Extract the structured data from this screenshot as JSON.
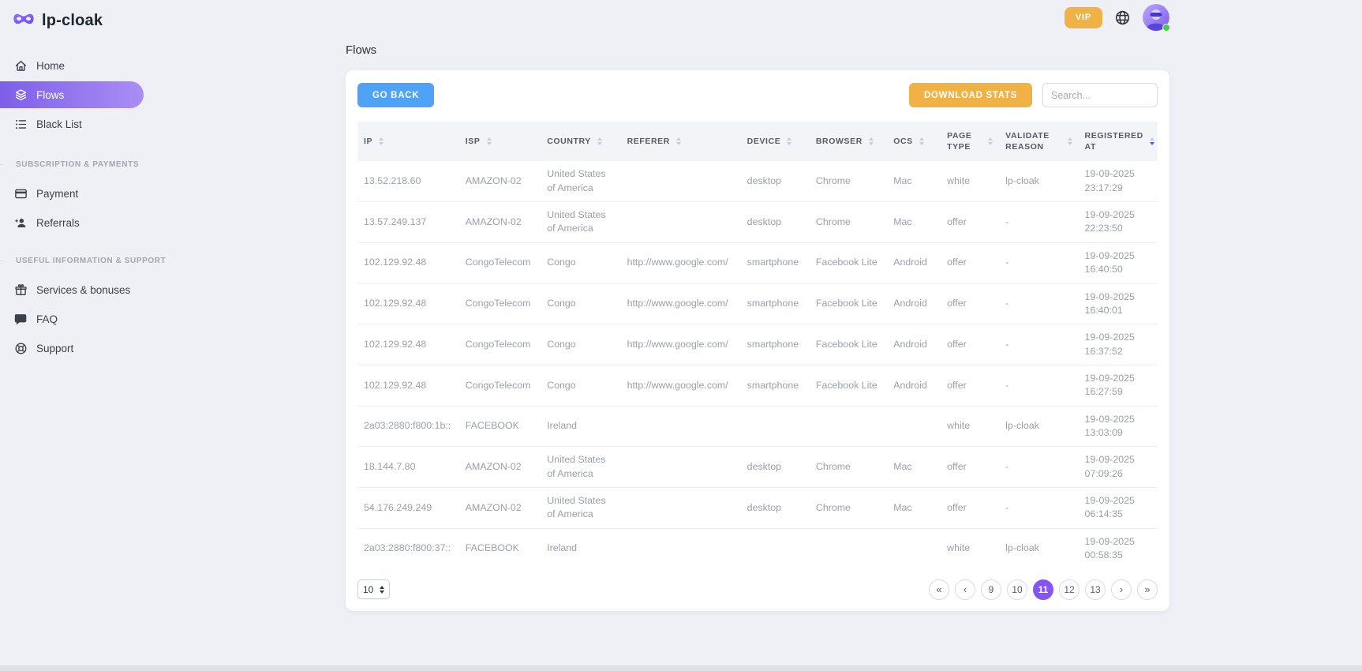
{
  "brand": {
    "name": "lp-cloak",
    "logo_icon": "mask-icon"
  },
  "topbar": {
    "vip": "VIP"
  },
  "sidebar": {
    "main_nav": [
      {
        "id": "home",
        "label": "Home",
        "icon": "home-icon",
        "active": false
      },
      {
        "id": "flows",
        "label": "Flows",
        "icon": "flows-icon",
        "active": true
      },
      {
        "id": "black-list",
        "label": "Black List",
        "icon": "black-list-icon",
        "active": false
      }
    ],
    "sections": [
      {
        "label": "SUBSCRIPTION & PAYMENTS",
        "items": [
          {
            "id": "payment",
            "label": "Payment",
            "icon": "payment-icon"
          },
          {
            "id": "referrals",
            "label": "Referrals",
            "icon": "referrals-icon"
          }
        ]
      },
      {
        "label": "USEFUL INFORMATION & SUPPORT",
        "items": [
          {
            "id": "services-bonuses",
            "label": "Services & bonuses",
            "icon": "gift-icon"
          },
          {
            "id": "faq",
            "label": "FAQ",
            "icon": "faq-icon"
          },
          {
            "id": "support",
            "label": "Support",
            "icon": "support-icon"
          }
        ]
      }
    ]
  },
  "page": {
    "title": "Flows"
  },
  "toolbar": {
    "go_back": "GO BACK",
    "download_stats": "DOWNLOAD STATS",
    "search_placeholder": "Search..."
  },
  "table": {
    "columns": [
      {
        "label": "IP",
        "sort": "none"
      },
      {
        "label": "ISP",
        "sort": "none"
      },
      {
        "label": "COUNTRY",
        "sort": "none"
      },
      {
        "label": "REFERER",
        "sort": "none"
      },
      {
        "label": "DEVICE",
        "sort": "none"
      },
      {
        "label": "BROWSER",
        "sort": "none"
      },
      {
        "label": "OCS",
        "sort": "none"
      },
      {
        "label": "PAGE TYPE",
        "sort": "none"
      },
      {
        "label": "VALIDATE REASON",
        "sort": "none"
      },
      {
        "label": "REGISTERED AT",
        "sort": "desc"
      }
    ],
    "rows": [
      {
        "ip": "13.52.218.60",
        "isp": "AMAZON-02",
        "country": "United States of America",
        "referer": "",
        "device": "desktop",
        "browser": "Chrome",
        "ocs": "Mac",
        "page_type": "white",
        "validate_reason": "lp-cloak",
        "registered_date": "19-09-2025",
        "registered_time": "23:17:29"
      },
      {
        "ip": "13.57.249.137",
        "isp": "AMAZON-02",
        "country": "United States of America",
        "referer": "",
        "device": "desktop",
        "browser": "Chrome",
        "ocs": "Mac",
        "page_type": "offer",
        "validate_reason": "-",
        "registered_date": "19-09-2025",
        "registered_time": "22:23:50"
      },
      {
        "ip": "102.129.92.48",
        "isp": "CongoTelecom",
        "country": "Congo",
        "referer": "http://www.google.com/",
        "device": "smartphone",
        "browser": "Facebook Lite",
        "ocs": "Android",
        "page_type": "offer",
        "validate_reason": "-",
        "registered_date": "19-09-2025",
        "registered_time": "16:40:50"
      },
      {
        "ip": "102.129.92.48",
        "isp": "CongoTelecom",
        "country": "Congo",
        "referer": "http://www.google.com/",
        "device": "smartphone",
        "browser": "Facebook Lite",
        "ocs": "Android",
        "page_type": "offer",
        "validate_reason": "-",
        "registered_date": "19-09-2025",
        "registered_time": "16:40:01"
      },
      {
        "ip": "102.129.92.48",
        "isp": "CongoTelecom",
        "country": "Congo",
        "referer": "http://www.google.com/",
        "device": "smartphone",
        "browser": "Facebook Lite",
        "ocs": "Android",
        "page_type": "offer",
        "validate_reason": "-",
        "registered_date": "19-09-2025",
        "registered_time": "16:37:52"
      },
      {
        "ip": "102.129.92.48",
        "isp": "CongoTelecom",
        "country": "Congo",
        "referer": "http://www.google.com/",
        "device": "smartphone",
        "browser": "Facebook Lite",
        "ocs": "Android",
        "page_type": "offer",
        "validate_reason": "-",
        "registered_date": "19-09-2025",
        "registered_time": "16:27:59"
      },
      {
        "ip": "2a03:2880:f800:1b::",
        "isp": "FACEBOOK",
        "country": "Ireland",
        "referer": "",
        "device": "",
        "browser": "",
        "ocs": "",
        "page_type": "white",
        "validate_reason": "lp-cloak",
        "registered_date": "19-09-2025",
        "registered_time": "13:03:09"
      },
      {
        "ip": "18.144.7.80",
        "isp": "AMAZON-02",
        "country": "United States of America",
        "referer": "",
        "device": "desktop",
        "browser": "Chrome",
        "ocs": "Mac",
        "page_type": "offer",
        "validate_reason": "-",
        "registered_date": "19-09-2025",
        "registered_time": "07:09:26"
      },
      {
        "ip": "54.176.249.249",
        "isp": "AMAZON-02",
        "country": "United States of America",
        "referer": "",
        "device": "desktop",
        "browser": "Chrome",
        "ocs": "Mac",
        "page_type": "offer",
        "validate_reason": "-",
        "registered_date": "19-09-2025",
        "registered_time": "06:14:35"
      },
      {
        "ip": "2a03:2880:f800:37::",
        "isp": "FACEBOOK",
        "country": "Ireland",
        "referer": "",
        "device": "",
        "browser": "",
        "ocs": "",
        "page_type": "white",
        "validate_reason": "lp-cloak",
        "registered_date": "19-09-2025",
        "registered_time": "00:58:35"
      }
    ]
  },
  "pagination": {
    "page_size": "10",
    "first": "«",
    "prev": "‹",
    "next": "›",
    "last": "»",
    "pages": [
      "9",
      "10",
      "11",
      "12",
      "13"
    ],
    "active_page": "11"
  },
  "colors": {
    "accent_purple": "#8455f6",
    "active_pill_gradient_start": "#7d5fe8",
    "active_pill_gradient_end": "#a98ef5",
    "button_blue": "#4ea3f6",
    "button_orange": "#f0b244",
    "active_sort_arrow": "#4a5ce4",
    "online_green": "#3fd142"
  }
}
